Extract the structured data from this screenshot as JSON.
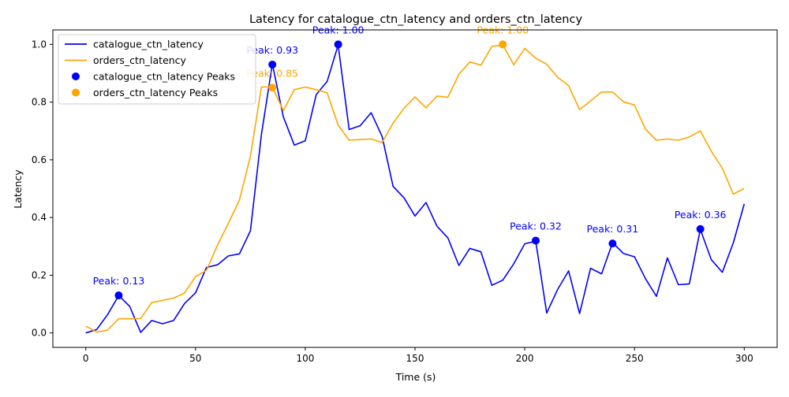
{
  "chart_data": {
    "type": "line",
    "title": "Latency for catalogue_ctn_latency and orders_ctn_latency",
    "xlabel": "Time (s)",
    "ylabel": "Latency",
    "xlim": [
      -15,
      315
    ],
    "ylim": [
      -0.05,
      1.05
    ],
    "xticks": [
      0,
      50,
      100,
      150,
      200,
      250,
      300
    ],
    "yticks": [
      0.0,
      0.2,
      0.4,
      0.6,
      0.8,
      1.0
    ],
    "xtick_labels": [
      "0",
      "50",
      "100",
      "150",
      "200",
      "250",
      "300"
    ],
    "ytick_labels": [
      "0.0",
      "0.2",
      "0.4",
      "0.6",
      "0.8",
      "1.0"
    ],
    "grid": false,
    "legend_position": "top-left",
    "x": [
      0,
      5,
      10,
      15,
      20,
      25,
      30,
      35,
      40,
      45,
      50,
      55,
      60,
      65,
      70,
      75,
      80,
      85,
      90,
      95,
      100,
      105,
      110,
      115,
      120,
      125,
      130,
      135,
      140,
      145,
      150,
      155,
      160,
      165,
      170,
      175,
      180,
      185,
      190,
      195,
      200,
      205,
      210,
      215,
      220,
      225,
      230,
      235,
      240,
      245,
      250,
      255,
      260,
      265,
      270,
      275,
      280,
      285,
      290,
      295,
      300
    ],
    "series": [
      {
        "name": "catalogue_ctn_latency",
        "color": "#0000ff",
        "values": [
          0.0,
          0.012,
          0.064,
          0.13,
          0.092,
          0.002,
          0.043,
          0.032,
          0.043,
          0.102,
          0.139,
          0.227,
          0.236,
          0.267,
          0.274,
          0.354,
          0.687,
          0.932,
          0.749,
          0.651,
          0.666,
          0.826,
          0.872,
          0.998,
          0.705,
          0.718,
          0.763,
          0.681,
          0.508,
          0.468,
          0.405,
          0.452,
          0.37,
          0.329,
          0.234,
          0.293,
          0.281,
          0.165,
          0.183,
          0.24,
          0.309,
          0.318,
          0.069,
          0.151,
          0.215,
          0.067,
          0.224,
          0.205,
          0.313,
          0.275,
          0.264,
          0.188,
          0.127,
          0.26,
          0.167,
          0.17,
          0.359,
          0.254,
          0.21,
          0.312,
          0.447
        ]
      },
      {
        "name": "orders_ctn_latency",
        "color": "#ffa500",
        "values": [
          0.024,
          0.003,
          0.01,
          0.049,
          0.049,
          0.05,
          0.105,
          0.113,
          0.121,
          0.138,
          0.195,
          0.217,
          0.304,
          0.38,
          0.461,
          0.612,
          0.852,
          0.853,
          0.77,
          0.843,
          0.852,
          0.843,
          0.832,
          0.72,
          0.668,
          0.67,
          0.672,
          0.66,
          0.727,
          0.779,
          0.818,
          0.78,
          0.821,
          0.817,
          0.896,
          0.939,
          0.928,
          0.993,
          0.998,
          0.929,
          0.986,
          0.952,
          0.931,
          0.886,
          0.857,
          0.774,
          0.804,
          0.835,
          0.835,
          0.801,
          0.79,
          0.706,
          0.668,
          0.672,
          0.668,
          0.679,
          0.7,
          0.63,
          0.571,
          0.481,
          0.501
        ]
      }
    ],
    "peaks": [
      {
        "series": "catalogue_ctn_latency",
        "color": "#0000ff",
        "x": 15,
        "y": 0.13,
        "label": "Peak: 0.13"
      },
      {
        "series": "catalogue_ctn_latency",
        "color": "#0000ff",
        "x": 85,
        "y": 0.93,
        "label": "Peak: 0.93"
      },
      {
        "series": "catalogue_ctn_latency",
        "color": "#0000ff",
        "x": 115,
        "y": 1.0,
        "label": "Peak: 1.00"
      },
      {
        "series": "catalogue_ctn_latency",
        "color": "#0000ff",
        "x": 205,
        "y": 0.32,
        "label": "Peak: 0.32"
      },
      {
        "series": "catalogue_ctn_latency",
        "color": "#0000ff",
        "x": 240,
        "y": 0.31,
        "label": "Peak: 0.31"
      },
      {
        "series": "catalogue_ctn_latency",
        "color": "#0000ff",
        "x": 280,
        "y": 0.36,
        "label": "Peak: 0.36"
      },
      {
        "series": "orders_ctn_latency",
        "color": "#ffa500",
        "x": 85,
        "y": 0.85,
        "label": "Peak: 0.85"
      },
      {
        "series": "orders_ctn_latency",
        "color": "#ffa500",
        "x": 190,
        "y": 1.0,
        "label": "Peak: 1.00"
      }
    ],
    "legend": [
      {
        "label": "catalogue_ctn_latency",
        "kind": "line",
        "color": "#0000ff"
      },
      {
        "label": "orders_ctn_latency",
        "kind": "line",
        "color": "#ffa500"
      },
      {
        "label": "catalogue_ctn_latency Peaks",
        "kind": "marker",
        "color": "#0000ff"
      },
      {
        "label": "orders_ctn_latency Peaks",
        "kind": "marker",
        "color": "#ffa500"
      }
    ]
  }
}
